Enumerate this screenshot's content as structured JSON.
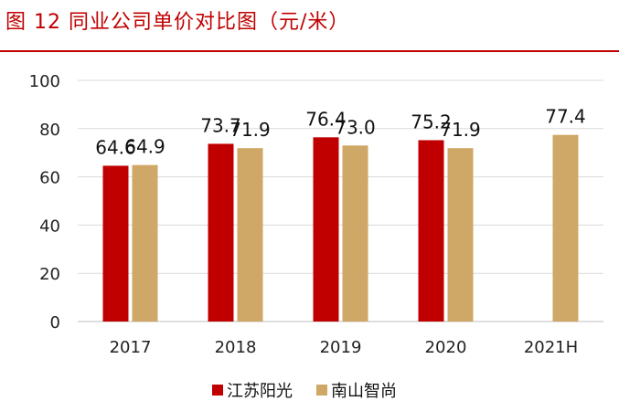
{
  "title": "图 12  同业公司单价对比图（元/米）",
  "chart_data": {
    "type": "bar",
    "title": "",
    "categories": [
      "2017",
      "2018",
      "2019",
      "2020",
      "2021H"
    ],
    "series": [
      {
        "name": "江苏阳光",
        "color": "#c00000",
        "values": [
          64.6,
          73.7,
          76.4,
          75.2,
          null
        ]
      },
      {
        "name": "南山智尚",
        "color": "#cfa766",
        "values": [
          64.9,
          71.9,
          73.0,
          71.9,
          77.4
        ]
      }
    ],
    "ylim": [
      0,
      100
    ],
    "yticks": [
      0,
      20,
      40,
      60,
      80,
      100
    ],
    "grid": true,
    "legend": "bottom"
  }
}
